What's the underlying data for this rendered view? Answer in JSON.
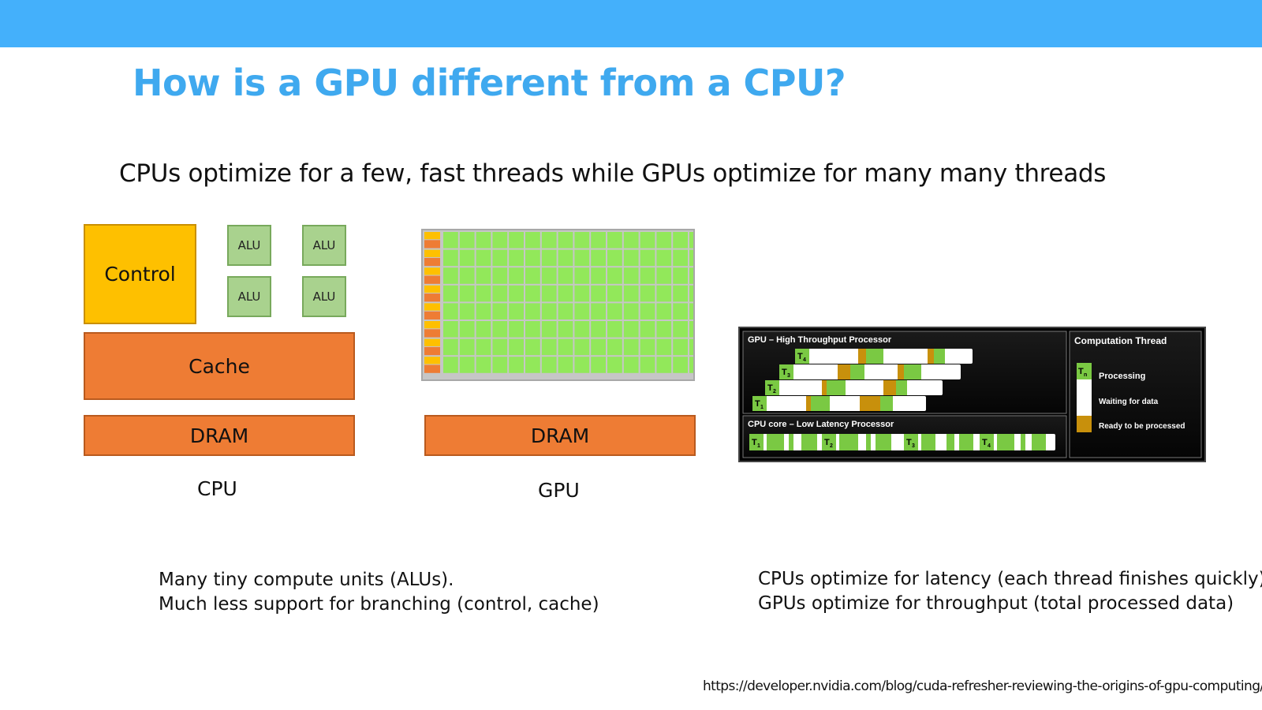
{
  "slide": {
    "title": "How is a GPU different from a CPU?",
    "subtitle": "CPUs optimize for a few, fast threads while GPUs optimize for many many threads",
    "cpu_diagram": {
      "control": "Control",
      "alu": "ALU",
      "cache": "Cache",
      "dram": "DRAM",
      "caption": "CPU"
    },
    "gpu_diagram": {
      "dram": "DRAM",
      "caption": "GPU",
      "rows": 8,
      "cols": 16
    },
    "notes_left": [
      "Many tiny compute units (ALUs).",
      "Much less support for branching (control, cache)"
    ],
    "notes_right": [
      "CPUs optimize for latency (each thread finishes quickly)",
      "GPUs optimize for throughput (total processed data)"
    ],
    "thread_panel": {
      "gpu_title": "GPU – High Throughput Processor",
      "cpu_title": "CPU core – Low Latency Processor",
      "legend_title": "Computation Thread",
      "legend_processing": "Processing",
      "legend_waiting": "Waiting for data",
      "legend_ready": "Ready to be processed",
      "thread_prefix": "T",
      "gpu_threads": [
        "4",
        "3",
        "2",
        "1"
      ],
      "cpu_threads": [
        "1",
        "2",
        "3",
        "4"
      ],
      "legend_subscript": "n"
    },
    "source_url": "https://developer.nvidia.com/blog/cuda-refresher-reviewing-the-origins-of-gpu-computing/"
  },
  "colors": {
    "header_bar": "#44b0fb",
    "title": "#3fa9ef",
    "control": "#fec000",
    "alu": "#a9d28e",
    "cache_dram": "#ee7c34",
    "gpu_core": "#92e85a",
    "processing": "#7ac943",
    "waiting": "#ffffff",
    "ready": "#c8900c"
  }
}
